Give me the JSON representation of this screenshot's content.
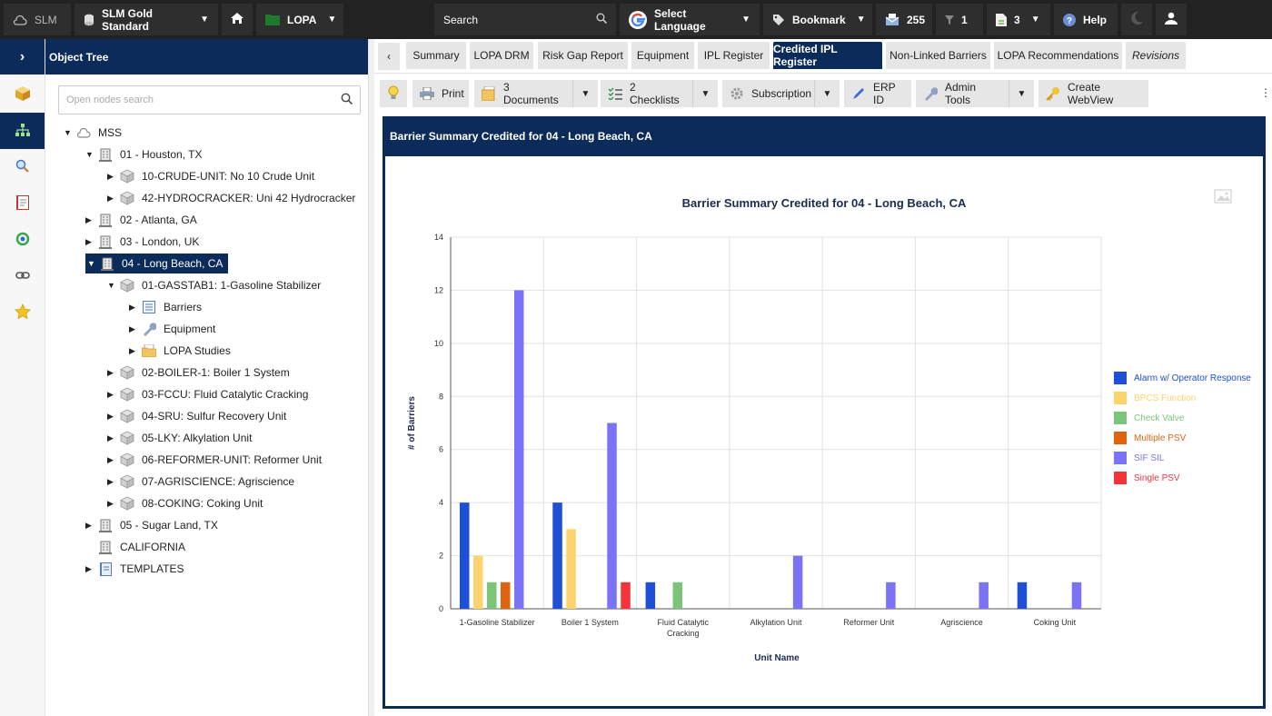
{
  "topbar": {
    "slm": "SLM",
    "workspace": "SLM Gold Standard",
    "module": "LOPA",
    "search": "Search",
    "language": "Select Language",
    "bookmark": "Bookmark",
    "inbox_count": "255",
    "filter_count": "1",
    "doc_count": "3",
    "help": "Help"
  },
  "tree": {
    "header": "Object Tree",
    "search_placeholder": "Open nodes search",
    "nodes": [
      {
        "label": "MSS"
      },
      {
        "label": "01 - Houston, TX"
      },
      {
        "label": "10-CRUDE-UNIT: No 10 Crude Unit"
      },
      {
        "label": "42-HYDROCRACKER: Uni 42 Hydrocracker"
      },
      {
        "label": "02 - Atlanta, GA"
      },
      {
        "label": "03 - London, UK"
      },
      {
        "label": "04 - Long Beach, CA"
      },
      {
        "label": "01-GASSTAB1: 1-Gasoline Stabilizer"
      },
      {
        "label": "Barriers"
      },
      {
        "label": "Equipment"
      },
      {
        "label": "LOPA Studies"
      },
      {
        "label": "02-BOILER-1: Boiler 1 System"
      },
      {
        "label": "03-FCCU: Fluid Catalytic Cracking"
      },
      {
        "label": "04-SRU: Sulfur Recovery Unit"
      },
      {
        "label": "05-LKY: Alkylation Unit"
      },
      {
        "label": "06-REFORMER-UNIT: Reformer Unit"
      },
      {
        "label": "07-AGRISCIENCE: Agriscience"
      },
      {
        "label": "08-COKING: Coking Unit"
      },
      {
        "label": "05 - Sugar Land, TX"
      },
      {
        "label": "CALIFORNIA"
      },
      {
        "label": "TEMPLATES"
      }
    ]
  },
  "tabs": [
    {
      "label": "Summary"
    },
    {
      "label": "LOPA DRM"
    },
    {
      "label": "Risk Gap Report"
    },
    {
      "label": "Equipment"
    },
    {
      "label": "IPL Register"
    },
    {
      "label": "Credited IPL Register"
    },
    {
      "label": "Non-Linked Barriers"
    },
    {
      "label": "LOPA Recommendations"
    },
    {
      "label": "Revisions"
    }
  ],
  "toolbar": {
    "print": "Print",
    "documents": "3 Documents",
    "checklists": "2 Checklists",
    "subscription": "Subscription",
    "erp": "ERP ID",
    "admin": "Admin Tools",
    "webview": "Create WebView"
  },
  "panel": {
    "header": "Barrier Summary Credited for 04 - Long Beach, CA"
  },
  "colors": {
    "navy": "#0b2c5a",
    "alarm": "#1f4fd6",
    "bpcs": "#fdd36e",
    "check": "#7ac57a",
    "multi": "#e0640f",
    "sif": "#7b73f5",
    "single": "#f5333b"
  },
  "chart_data": {
    "type": "bar",
    "title": "Barrier Summary Credited for 04 - Long Beach, CA",
    "xlabel": "Unit Name",
    "ylabel": "# of Barriers",
    "ylim": [
      0,
      14
    ],
    "yticks": [
      0,
      2,
      4,
      6,
      8,
      10,
      12,
      14
    ],
    "grid": true,
    "legend_position": "right",
    "categories": [
      "1-Gasoline Stabilizer",
      "Boiler 1 System",
      "Fluid Catalytic Cracking",
      "Alkylation Unit",
      "Reformer Unit",
      "Agriscience",
      "Coking Unit"
    ],
    "category_lines": [
      [
        "1-Gasoline Stabilizer"
      ],
      [
        "Boiler 1 System"
      ],
      [
        "Fluid Catalytic",
        "Cracking"
      ],
      [
        "Alkylation Unit"
      ],
      [
        "Reformer Unit"
      ],
      [
        "Agriscience"
      ],
      [
        "Coking Unit"
      ]
    ],
    "series": [
      {
        "name": "Alarm w/ Operator Response",
        "color": "#1f4fd6",
        "values": [
          4,
          4,
          1,
          0,
          0,
          0,
          1
        ]
      },
      {
        "name": "BPCS Function",
        "color": "#fdd36e",
        "values": [
          2,
          3,
          0,
          0,
          0,
          0,
          0
        ]
      },
      {
        "name": "Check Valve",
        "color": "#7ac57a",
        "values": [
          1,
          0,
          1,
          0,
          0,
          0,
          0
        ]
      },
      {
        "name": "Multiple PSV",
        "color": "#e0640f",
        "values": [
          1,
          0,
          0,
          0,
          0,
          0,
          0
        ]
      },
      {
        "name": "SIF SIL",
        "color": "#7b73f5",
        "values": [
          12,
          7,
          0,
          2,
          1,
          1,
          1
        ]
      },
      {
        "name": "Single PSV",
        "color": "#f5333b",
        "values": [
          0,
          1,
          0,
          0,
          0,
          0,
          0
        ]
      }
    ]
  }
}
